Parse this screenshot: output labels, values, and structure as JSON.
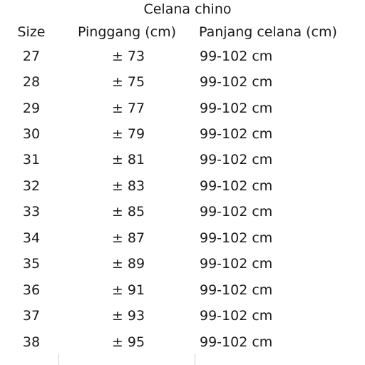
{
  "title": "Celana chino",
  "headers": {
    "size": "Size",
    "waist": "Pinggang (cm)",
    "length": "Panjang celana (cm)"
  },
  "rows": [
    {
      "size": "27",
      "waist": "± 73",
      "length": "99-102 cm"
    },
    {
      "size": "28",
      "waist": "± 75",
      "length": "99-102 cm"
    },
    {
      "size": "29",
      "waist": "± 77",
      "length": "99-102 cm"
    },
    {
      "size": "30",
      "waist": "± 79",
      "length": "99-102 cm"
    },
    {
      "size": "31",
      "waist": "± 81",
      "length": "99-102 cm"
    },
    {
      "size": "32",
      "waist": "± 83",
      "length": "99-102 cm"
    },
    {
      "size": "33",
      "waist": "± 85",
      "length": "99-102 cm"
    },
    {
      "size": "34",
      "waist": "± 87",
      "length": "99-102 cm"
    },
    {
      "size": "35",
      "waist": "± 89",
      "length": "99-102 cm"
    },
    {
      "size": "36",
      "waist": "± 91",
      "length": "99-102 cm"
    },
    {
      "size": "37",
      "waist": "± 93",
      "length": "99-102 cm"
    },
    {
      "size": "38",
      "waist": "± 95",
      "length": "99-102 cm"
    }
  ]
}
